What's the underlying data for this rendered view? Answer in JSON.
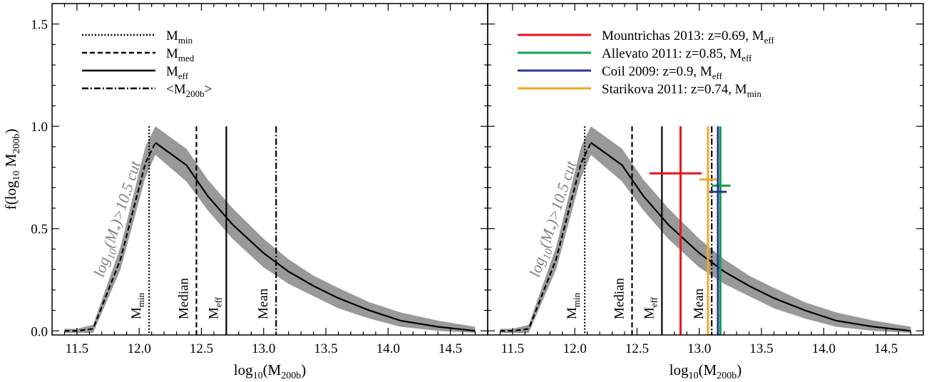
{
  "chart_data": [
    {
      "type": "line",
      "panel": "left",
      "xlabel": {
        "base": "log",
        "sub1": "10",
        "mid": "(M",
        "sub2": "200b",
        "end": ")"
      },
      "ylabel": {
        "base": "f(log",
        "sub1": "10",
        "mid": " M",
        "sub2": "200b",
        "end": ")"
      },
      "xlim": [
        11.3,
        14.8
      ],
      "ylim": [
        -0.02,
        1.6
      ],
      "xticks": [
        "11.5",
        "12.0",
        "12.5",
        "13.0",
        "13.5",
        "14.0",
        "14.5"
      ],
      "yticks": [
        "0.0",
        "0.5",
        "1.0",
        "1.5"
      ],
      "series": [
        {
          "x": [
            11.4,
            11.5,
            11.63,
            11.85,
            12.05,
            12.13,
            12.38,
            12.55,
            12.75,
            13.0,
            13.2,
            13.4,
            13.6,
            13.85,
            14.1,
            14.4,
            14.7
          ],
          "y": [
            0.0,
            0.0,
            0.01,
            0.35,
            0.82,
            0.92,
            0.81,
            0.66,
            0.52,
            0.38,
            0.29,
            0.22,
            0.16,
            0.1,
            0.05,
            0.02,
            0.0
          ],
          "lower": [
            -0.01,
            -0.01,
            -0.01,
            0.3,
            0.75,
            0.86,
            0.73,
            0.59,
            0.45,
            0.31,
            0.23,
            0.17,
            0.11,
            0.06,
            0.02,
            0.0,
            -0.01
          ],
          "upper": [
            0.01,
            0.01,
            0.03,
            0.41,
            0.9,
            1.0,
            0.89,
            0.74,
            0.6,
            0.45,
            0.35,
            0.27,
            0.21,
            0.14,
            0.09,
            0.05,
            0.02
          ]
        }
      ],
      "vlines": [
        {
          "x": 12.08,
          "style": "dotted",
          "label": "M",
          "sub": "min"
        },
        {
          "x": 12.46,
          "style": "dashed",
          "label": "Median",
          "sub": ""
        },
        {
          "x": 12.7,
          "style": "solid",
          "label": "M",
          "sub": "eff"
        },
        {
          "x": 13.1,
          "style": "dashdot",
          "label": "Mean",
          "sub": ""
        }
      ],
      "cut_annotation": {
        "a": "log",
        "b": "10",
        "c": "(M",
        "d": "*",
        "e": ")>10.5 cut"
      },
      "legend": {
        "placement": "top-left",
        "items": [
          {
            "style": "dotted",
            "label": "M",
            "sub": "min"
          },
          {
            "style": "dashed",
            "label": "M",
            "sub": "med"
          },
          {
            "style": "solid",
            "label": "M",
            "sub": "eff"
          },
          {
            "style": "dashdot",
            "label": "<M",
            "sub": "200b",
            "suffix": ">"
          }
        ]
      }
    },
    {
      "type": "line",
      "panel": "right",
      "xlabel": {
        "base": "log",
        "sub1": "10",
        "mid": "(M",
        "sub2": "200b",
        "end": ")"
      },
      "xlim": [
        11.3,
        14.8
      ],
      "ylim": [
        -0.02,
        1.6
      ],
      "xticks": [
        "11.5",
        "12.0",
        "12.5",
        "13.0",
        "13.5",
        "14.0",
        "14.5"
      ],
      "series": [
        {
          "x": [
            11.4,
            11.5,
            11.63,
            11.85,
            12.05,
            12.13,
            12.38,
            12.55,
            12.75,
            13.0,
            13.2,
            13.4,
            13.6,
            13.85,
            14.1,
            14.4,
            14.7
          ],
          "y": [
            0.0,
            0.0,
            0.01,
            0.35,
            0.82,
            0.92,
            0.81,
            0.66,
            0.52,
            0.38,
            0.29,
            0.22,
            0.16,
            0.1,
            0.05,
            0.02,
            0.0
          ],
          "lower": [
            -0.01,
            -0.01,
            -0.01,
            0.3,
            0.75,
            0.86,
            0.73,
            0.59,
            0.45,
            0.31,
            0.23,
            0.17,
            0.11,
            0.06,
            0.02,
            0.0,
            -0.01
          ],
          "upper": [
            0.01,
            0.01,
            0.03,
            0.41,
            0.9,
            1.0,
            0.89,
            0.74,
            0.6,
            0.45,
            0.35,
            0.27,
            0.21,
            0.14,
            0.09,
            0.05,
            0.02
          ]
        }
      ],
      "vlines": [
        {
          "x": 12.08,
          "style": "dotted",
          "label": "M",
          "sub": "min"
        },
        {
          "x": 12.46,
          "style": "dashed",
          "label": "Median",
          "sub": ""
        },
        {
          "x": 12.7,
          "style": "solid",
          "label": "M",
          "sub": "eff"
        },
        {
          "x": 13.1,
          "style": "dashdot",
          "label": "Mean",
          "sub": ""
        }
      ],
      "cut_annotation": {
        "a": "log",
        "b": "10",
        "c": "(M",
        "d": "*",
        "e": ")>10.5 cut"
      },
      "observations": [
        {
          "name": "Mountrichas 2013",
          "label": "Mountrichas 2013: z=0.69, M",
          "sub": "eff",
          "color": "#e8151b",
          "x": 12.85,
          "y": 0.77,
          "xerr": [
            12.6,
            13.02
          ]
        },
        {
          "name": "Allevato 2011",
          "label": "Allevato 2011: z=0.85, M",
          "sub": "eff",
          "color": "#10a352",
          "x": 13.17,
          "y": 0.71,
          "xerr": [
            13.1,
            13.25
          ]
        },
        {
          "name": "Coil 2009",
          "label": "Coil 2009: z=0.9, M",
          "sub": "eff",
          "color": "#283593",
          "x": 13.15,
          "y": 0.68,
          "xerr": [
            13.08,
            13.22
          ]
        },
        {
          "name": "Starikova 2011",
          "label": "Starikova 2011: z=0.74, M",
          "sub": "min",
          "color": "#f5a623",
          "x": 13.07,
          "y": 0.74,
          "xerr": [
            13.0,
            13.14
          ]
        }
      ],
      "legend": {
        "placement": "top-left"
      }
    }
  ]
}
